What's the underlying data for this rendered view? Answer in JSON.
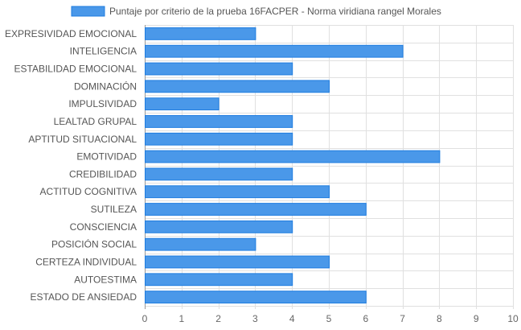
{
  "chart_data": {
    "type": "bar",
    "orientation": "horizontal",
    "categories": [
      "EXPRESIVIDAD EMOCIONAL",
      "INTELIGENCIA",
      "ESTABILIDAD EMOCIONAL",
      "DOMINACIÓN",
      "IMPULSIVIDAD",
      "LEALTAD GRUPAL",
      "APTITUD SITUACIONAL",
      "EMOTIVIDAD",
      "CREDIBILIDAD",
      "ACTITUD COGNITIVA",
      "SUTILEZA",
      "CONSCIENCIA",
      "POSICIÓN SOCIAL",
      "CERTEZA INDIVIDUAL",
      "AUTOESTIMA",
      "ESTADO DE ANSIEDAD"
    ],
    "series": [
      {
        "name": "Puntaje por criterio de la prueba 16FACPER - Norma viridiana rangel Morales",
        "values": [
          3,
          7,
          4,
          5,
          2,
          4,
          4,
          8,
          4,
          5,
          6,
          4,
          3,
          5,
          4,
          6
        ]
      }
    ],
    "xlim": [
      0,
      10
    ],
    "xticks": [
      "0",
      "1",
      "2",
      "3",
      "4",
      "5",
      "6",
      "7",
      "8",
      "9",
      "10"
    ],
    "grid": true,
    "legend_position": "top",
    "colors": {
      "bar_fill": "#4a98e9",
      "bar_border": "#1f7de0",
      "grid": "#e0e0e0",
      "axis": "#999999"
    }
  }
}
